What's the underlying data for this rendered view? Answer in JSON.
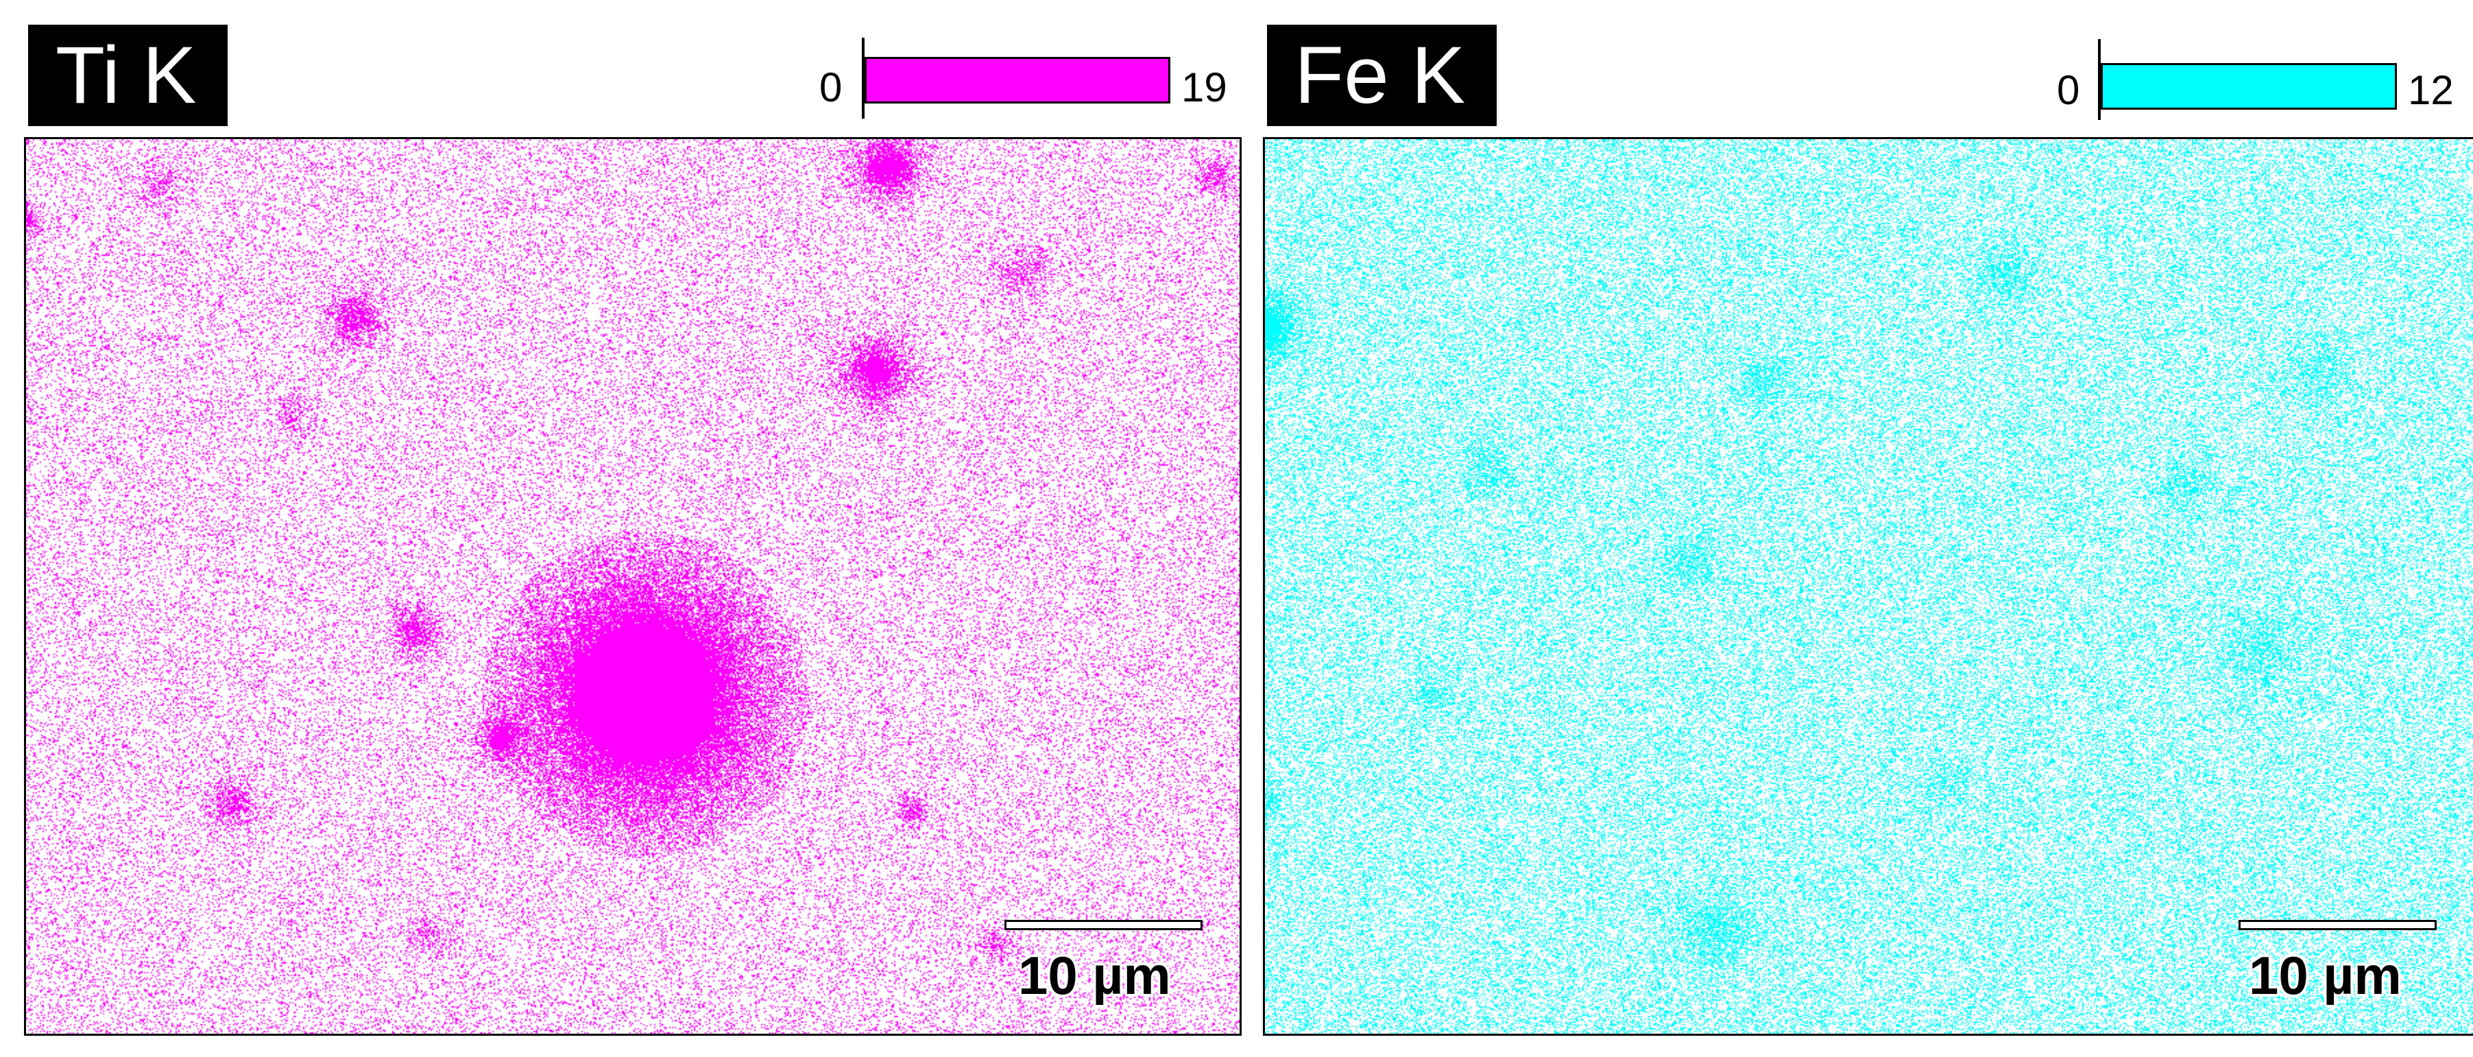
{
  "panels": [
    {
      "label": "Ti K",
      "color": "#ff00ff",
      "scale_min": "0",
      "scale_max": "19",
      "scale_bar_label": "10 µm"
    },
    {
      "label": "Fe K",
      "color": "#00ffff",
      "scale_min": "0",
      "scale_max": "12",
      "scale_bar_label": "10 µm"
    }
  ]
}
